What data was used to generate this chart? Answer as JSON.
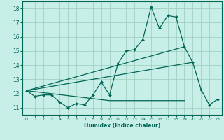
{
  "xlabel": "Humidex (Indice chaleur)",
  "bg_color": "#c8eee8",
  "grid_color": "#99ccbb",
  "line_color": "#006655",
  "xlim": [
    -0.5,
    23.5
  ],
  "ylim": [
    10.5,
    18.5
  ],
  "yticks": [
    11,
    12,
    13,
    14,
    15,
    16,
    17,
    18
  ],
  "xticks": [
    0,
    1,
    2,
    3,
    4,
    5,
    6,
    7,
    8,
    9,
    10,
    11,
    12,
    13,
    14,
    15,
    16,
    17,
    18,
    19,
    20,
    21,
    22,
    23
  ],
  "series_main_x": [
    0,
    1,
    2,
    3,
    4,
    5,
    6,
    7,
    8,
    9,
    10,
    11,
    12,
    13,
    14,
    15,
    16,
    17,
    18,
    19,
    20,
    21,
    22,
    23
  ],
  "series_main_y": [
    12.2,
    11.8,
    11.9,
    11.9,
    11.4,
    11.0,
    11.3,
    11.2,
    11.9,
    12.8,
    11.9,
    14.1,
    15.0,
    15.1,
    15.8,
    18.1,
    16.6,
    17.5,
    17.4,
    15.3,
    14.2,
    12.3,
    11.2,
    11.6
  ],
  "series_line1_x": [
    0,
    19
  ],
  "series_line1_y": [
    12.2,
    15.3
  ],
  "series_line2_x": [
    0,
    20
  ],
  "series_line2_y": [
    12.2,
    14.2
  ],
  "series_line3_x": [
    0,
    10,
    19
  ],
  "series_line3_y": [
    12.2,
    11.5,
    11.5
  ]
}
